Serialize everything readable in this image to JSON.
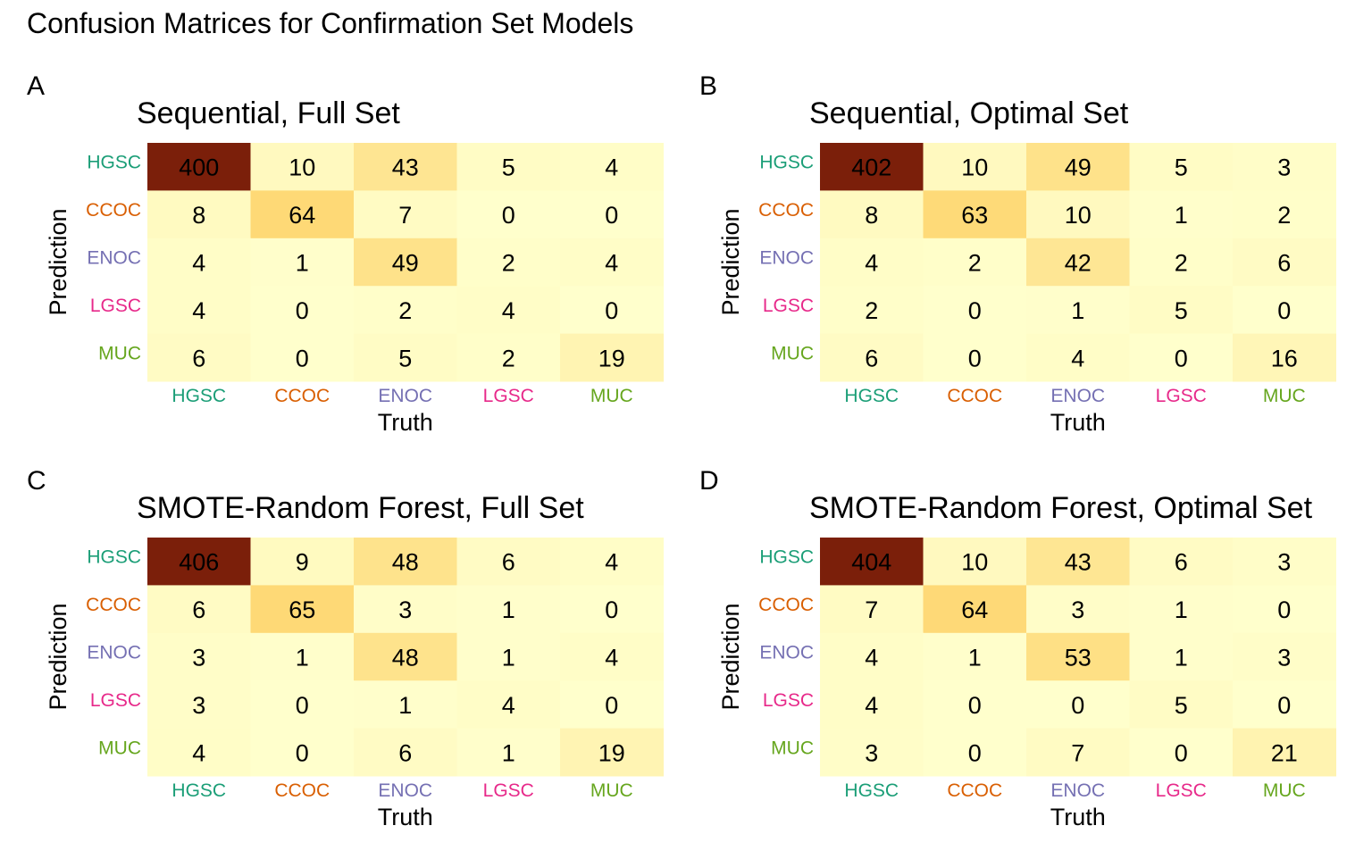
{
  "title": "Confusion Matrices for Confirmation Set Models",
  "colors": {
    "HGSC": "#1b9e77",
    "CCOC": "#d95f02",
    "ENOC": "#7570b3",
    "LGSC": "#e7298a",
    "MUC": "#66a61e",
    "fill_low": "#ffffcc",
    "fill_mid": "#fed976",
    "fill_high": "#7b1f0a"
  },
  "chart_data": [
    {
      "panel": "A",
      "type": "heatmap",
      "title": "Sequential, Full Set",
      "xlabel": "Truth",
      "ylabel": "Prediction",
      "x_categories": [
        "HGSC",
        "CCOC",
        "ENOC",
        "LGSC",
        "MUC"
      ],
      "y_categories": [
        "HGSC",
        "CCOC",
        "ENOC",
        "LGSC",
        "MUC"
      ],
      "values": [
        [
          400,
          10,
          43,
          5,
          4
        ],
        [
          8,
          64,
          7,
          0,
          0
        ],
        [
          4,
          1,
          49,
          2,
          4
        ],
        [
          4,
          0,
          2,
          4,
          0
        ],
        [
          6,
          0,
          5,
          2,
          19
        ]
      ]
    },
    {
      "panel": "B",
      "type": "heatmap",
      "title": "Sequential, Optimal Set",
      "xlabel": "Truth",
      "ylabel": "Prediction",
      "x_categories": [
        "HGSC",
        "CCOC",
        "ENOC",
        "LGSC",
        "MUC"
      ],
      "y_categories": [
        "HGSC",
        "CCOC",
        "ENOC",
        "LGSC",
        "MUC"
      ],
      "values": [
        [
          402,
          10,
          49,
          5,
          3
        ],
        [
          8,
          63,
          10,
          1,
          2
        ],
        [
          4,
          2,
          42,
          2,
          6
        ],
        [
          2,
          0,
          1,
          5,
          0
        ],
        [
          6,
          0,
          4,
          0,
          16
        ]
      ]
    },
    {
      "panel": "C",
      "type": "heatmap",
      "title": "SMOTE-Random Forest, Full Set",
      "xlabel": "Truth",
      "ylabel": "Prediction",
      "x_categories": [
        "HGSC",
        "CCOC",
        "ENOC",
        "LGSC",
        "MUC"
      ],
      "y_categories": [
        "HGSC",
        "CCOC",
        "ENOC",
        "LGSC",
        "MUC"
      ],
      "values": [
        [
          406,
          9,
          48,
          6,
          4
        ],
        [
          6,
          65,
          3,
          1,
          0
        ],
        [
          3,
          1,
          48,
          1,
          4
        ],
        [
          3,
          0,
          1,
          4,
          0
        ],
        [
          4,
          0,
          6,
          1,
          19
        ]
      ]
    },
    {
      "panel": "D",
      "type": "heatmap",
      "title": "SMOTE-Random Forest, Optimal Set",
      "xlabel": "Truth",
      "ylabel": "Prediction",
      "x_categories": [
        "HGSC",
        "CCOC",
        "ENOC",
        "LGSC",
        "MUC"
      ],
      "y_categories": [
        "HGSC",
        "CCOC",
        "ENOC",
        "LGSC",
        "MUC"
      ],
      "values": [
        [
          404,
          10,
          43,
          6,
          3
        ],
        [
          7,
          64,
          3,
          1,
          0
        ],
        [
          4,
          1,
          53,
          1,
          3
        ],
        [
          4,
          0,
          0,
          5,
          0
        ],
        [
          3,
          0,
          7,
          0,
          21
        ]
      ]
    }
  ]
}
